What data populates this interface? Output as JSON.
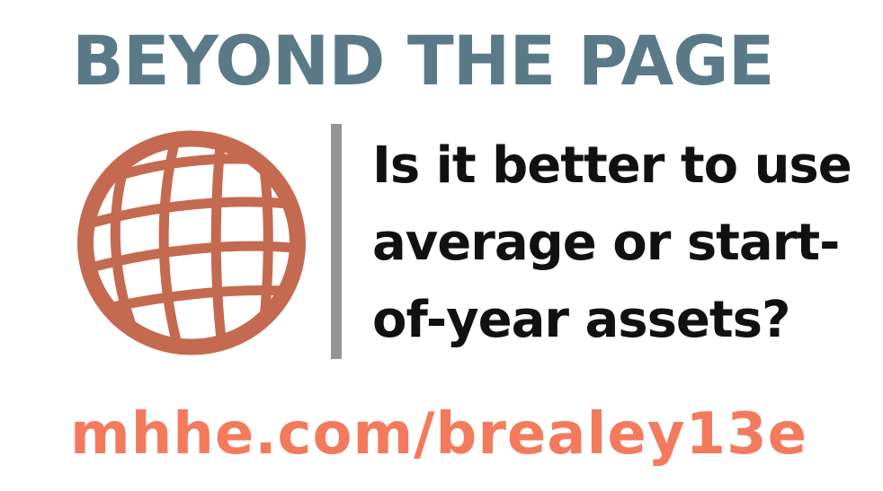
{
  "headline": "BEYOND THE PAGE",
  "question": {
    "lines": [
      "Is it better to use",
      "average or start-",
      "of-year assets?"
    ]
  },
  "url": "mhhe.com/brealey13e",
  "icon": "globe-icon",
  "colors": {
    "headline": "#5b7a87",
    "globe": "#c46a50",
    "divider": "#939598",
    "question": "#111111",
    "url": "#f47a5e"
  }
}
